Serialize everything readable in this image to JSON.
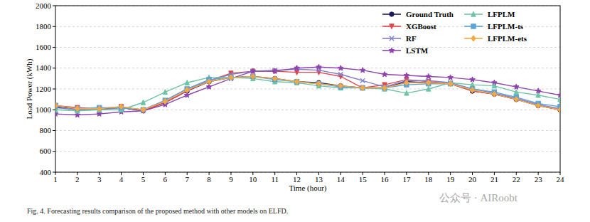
{
  "chart_data": {
    "type": "line",
    "x_label": "Time (hour)",
    "y_label": "Load Power (kWh)",
    "caption": "Fig. 4.  Forecasting results comparison of the proposed method with other models on ELFD.",
    "watermark": "公众号 · AIRoobt",
    "x": [
      1,
      2,
      3,
      4,
      5,
      6,
      7,
      8,
      9,
      10,
      11,
      12,
      13,
      14,
      15,
      16,
      17,
      18,
      19,
      20,
      21,
      22,
      23,
      24
    ],
    "xlim": [
      1,
      24
    ],
    "xticks": [
      1,
      2,
      3,
      4,
      5,
      6,
      7,
      8,
      9,
      10,
      11,
      12,
      13,
      14,
      15,
      16,
      17,
      18,
      19,
      20,
      21,
      22,
      23,
      24
    ],
    "ylim": [
      400,
      2000
    ],
    "yticks": [
      400,
      600,
      800,
      1000,
      1200,
      1400,
      1600,
      1800,
      2000
    ],
    "grid": true,
    "legend": "upper right",
    "series": [
      {
        "name": "Ground Truth",
        "color": "#1b1b5e",
        "marker": "circle",
        "values": [
          1030,
          1010,
          1010,
          1020,
          990,
          1070,
          1180,
          1270,
          1310,
          1320,
          1300,
          1270,
          1260,
          1230,
          1210,
          1210,
          1270,
          1260,
          1250,
          1180,
          1150,
          1100,
          1040,
          1000
        ]
      },
      {
        "name": "XGBoost",
        "color": "#e0474c",
        "marker": "triangle_down",
        "values": [
          1040,
          1020,
          1010,
          1030,
          990,
          1070,
          1180,
          1280,
          1350,
          1370,
          1370,
          1360,
          1360,
          1320,
          1210,
          1240,
          1290,
          1270,
          1250,
          1180,
          1150,
          1100,
          1040,
          1000
        ]
      },
      {
        "name": "RF",
        "color": "#7f7fcc",
        "marker": "x",
        "values": [
          1020,
          1000,
          1000,
          1020,
          1000,
          1090,
          1200,
          1280,
          1340,
          1370,
          1380,
          1390,
          1380,
          1340,
          1280,
          1220,
          1280,
          1280,
          1260,
          1200,
          1160,
          1110,
          1050,
          1010
        ]
      },
      {
        "name": "LSTM",
        "color": "#8e44ad",
        "marker": "star",
        "values": [
          960,
          950,
          960,
          980,
          990,
          1050,
          1140,
          1220,
          1300,
          1370,
          1370,
          1400,
          1410,
          1400,
          1380,
          1340,
          1330,
          1320,
          1310,
          1290,
          1260,
          1220,
          1180,
          1140
        ]
      },
      {
        "name": "LFPLM",
        "color": "#6cc4a4",
        "marker": "triangle_up",
        "values": [
          1000,
          990,
          1000,
          1000,
          1070,
          1170,
          1260,
          1310,
          1310,
          1300,
          1270,
          1260,
          1230,
          1210,
          1210,
          1200,
          1160,
          1200,
          1260,
          1240,
          1230,
          1170,
          1140,
          1100
        ]
      },
      {
        "name": "LFPLM-ts",
        "color": "#5ba3d9",
        "marker": "square",
        "values": [
          1040,
          1010,
          1020,
          1020,
          1000,
          1090,
          1200,
          1290,
          1310,
          1320,
          1290,
          1270,
          1250,
          1220,
          1210,
          1210,
          1240,
          1250,
          1250,
          1200,
          1170,
          1120,
          1060,
          1030
        ]
      },
      {
        "name": "LFPLM-ets",
        "color": "#f5a742",
        "marker": "diamond",
        "values": [
          1040,
          1010,
          1010,
          1030,
          1000,
          1080,
          1190,
          1270,
          1310,
          1320,
          1300,
          1270,
          1250,
          1230,
          1210,
          1210,
          1260,
          1260,
          1250,
          1190,
          1150,
          1100,
          1040,
          1000
        ]
      }
    ]
  }
}
